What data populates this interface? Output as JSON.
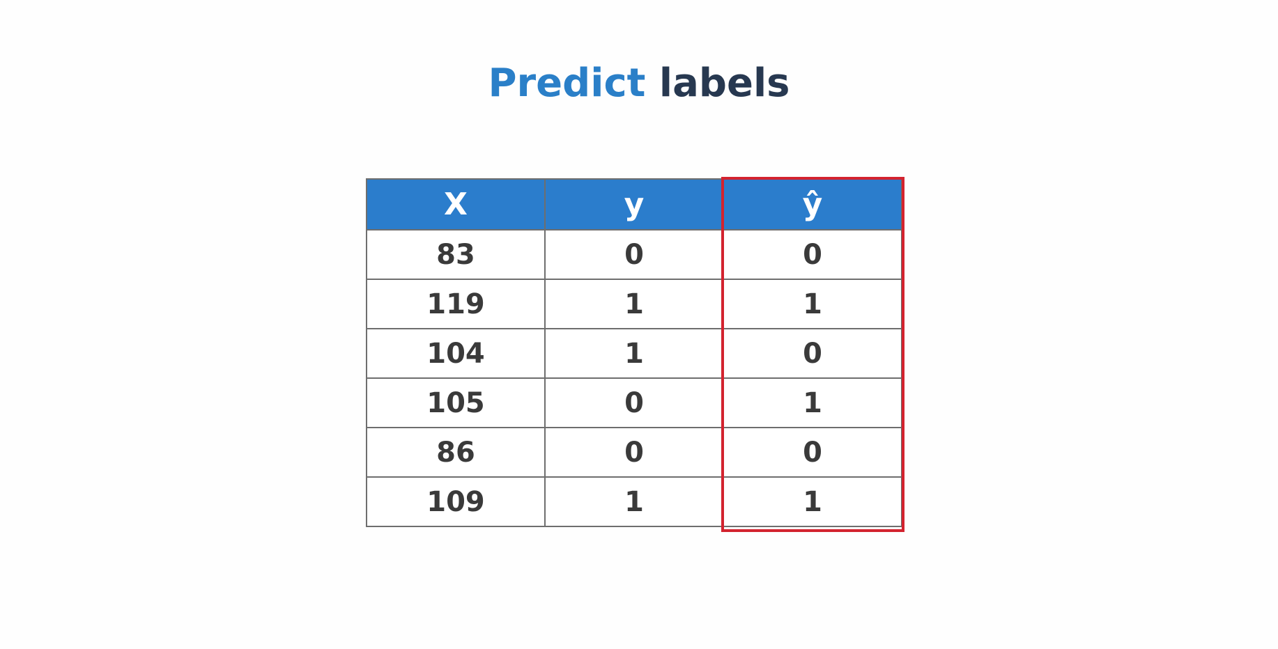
{
  "title": {
    "accent_word": "Predict",
    "rest_word": "labels"
  },
  "table": {
    "headers": [
      "X",
      "y",
      "ŷ"
    ],
    "rows": [
      [
        "83",
        "0",
        "0"
      ],
      [
        "119",
        "1",
        "1"
      ],
      [
        "104",
        "1",
        "0"
      ],
      [
        "105",
        "0",
        "1"
      ],
      [
        "86",
        "0",
        "0"
      ],
      [
        "109",
        "1",
        "1"
      ]
    ]
  },
  "colors": {
    "title_accent": "#2a7fc8",
    "title_text": "#273850",
    "header_bg": "#2b7dcc",
    "highlight_border": "#d3232f"
  }
}
